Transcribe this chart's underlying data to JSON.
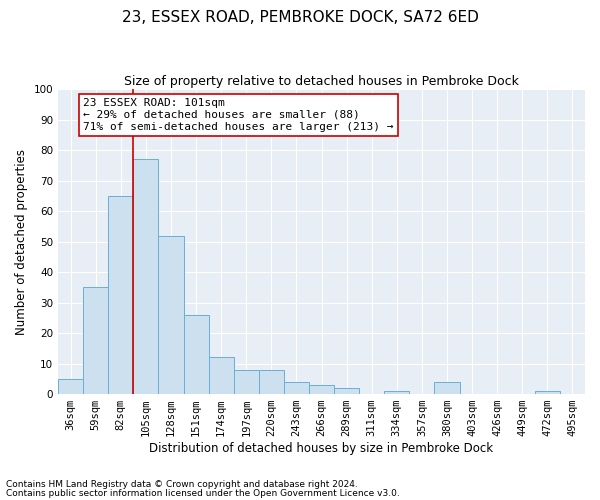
{
  "title": "23, ESSEX ROAD, PEMBROKE DOCK, SA72 6ED",
  "subtitle": "Size of property relative to detached houses in Pembroke Dock",
  "xlabel": "Distribution of detached houses by size in Pembroke Dock",
  "ylabel": "Number of detached properties",
  "footnote1": "Contains HM Land Registry data © Crown copyright and database right 2024.",
  "footnote2": "Contains public sector information licensed under the Open Government Licence v3.0.",
  "categories": [
    "36sqm",
    "59sqm",
    "82sqm",
    "105sqm",
    "128sqm",
    "151sqm",
    "174sqm",
    "197sqm",
    "220sqm",
    "243sqm",
    "266sqm",
    "289sqm",
    "311sqm",
    "334sqm",
    "357sqm",
    "380sqm",
    "403sqm",
    "426sqm",
    "449sqm",
    "472sqm",
    "495sqm"
  ],
  "values": [
    5,
    35,
    65,
    77,
    52,
    26,
    12,
    8,
    8,
    4,
    3,
    2,
    0,
    1,
    0,
    4,
    0,
    0,
    0,
    1,
    0
  ],
  "bar_color": "#cce0f0",
  "bar_edge_color": "#6aaed6",
  "vline_x": 2.5,
  "vline_color": "#cc0000",
  "annotation_text": "23 ESSEX ROAD: 101sqm\n← 29% of detached houses are smaller (88)\n71% of semi-detached houses are larger (213) →",
  "annotation_box_color": "#ffffff",
  "annotation_box_edge": "#cc0000",
  "ylim": [
    0,
    100
  ],
  "yticks": [
    0,
    10,
    20,
    30,
    40,
    50,
    60,
    70,
    80,
    90,
    100
  ],
  "background_color": "#e8eef5",
  "grid_color": "#ffffff",
  "title_fontsize": 11,
  "subtitle_fontsize": 9,
  "axis_label_fontsize": 8.5,
  "tick_fontsize": 7.5,
  "annotation_fontsize": 8,
  "footnote_fontsize": 6.5
}
